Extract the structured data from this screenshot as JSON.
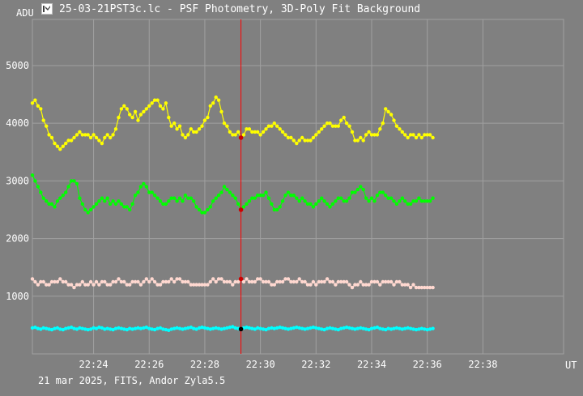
{
  "window": {
    "title": "25-03-21PST3c.lc - PSF Photometry, 3D-Poly Fit Background",
    "icon": "lightcurve-app-icon"
  },
  "footer": {
    "text": "21 mar 2025, FITS, Andor Zyla5.5"
  },
  "chart_data": {
    "type": "line",
    "title": "",
    "xlabel": "UT",
    "ylabel": "ADU",
    "xlim": [
      "22:21:48",
      "22:40:54"
    ],
    "ylim": [
      0,
      5800
    ],
    "x_ticks": [
      "22:24",
      "22:26",
      "22:28",
      "22:30",
      "22:32",
      "22:34",
      "22:36",
      "22:38"
    ],
    "y_ticks": [
      1000,
      2000,
      3000,
      4000,
      5000
    ],
    "grid": true,
    "cursor": {
      "x": "22:29:18"
    },
    "series": [
      {
        "color": "#ffff00",
        "start": "22:21:48",
        "step_seconds": 6,
        "values": [
          4350,
          4400,
          4300,
          4250,
          4050,
          3950,
          3800,
          3750,
          3650,
          3600,
          3550,
          3600,
          3650,
          3700,
          3700,
          3750,
          3800,
          3850,
          3800,
          3800,
          3800,
          3750,
          3800,
          3750,
          3700,
          3650,
          3750,
          3800,
          3750,
          3800,
          3900,
          4100,
          4250,
          4300,
          4250,
          4150,
          4100,
          4200,
          4050,
          4150,
          4200,
          4250,
          4300,
          4350,
          4400,
          4400,
          4300,
          4250,
          4350,
          4100,
          3950,
          4000,
          3900,
          3950,
          3800,
          3750,
          3800,
          3900,
          3850,
          3850,
          3900,
          3950,
          4050,
          4100,
          4300,
          4350,
          4450,
          4400,
          4200,
          4000,
          3950,
          3850,
          3800,
          3800,
          3850,
          3750,
          3800,
          3900,
          3900,
          3850,
          3850,
          3850,
          3800,
          3850,
          3900,
          3950,
          3950,
          4000,
          3950,
          3900,
          3850,
          3800,
          3750,
          3750,
          3700,
          3650,
          3700,
          3750,
          3700,
          3700,
          3700,
          3750,
          3800,
          3850,
          3900,
          3950,
          4000,
          4000,
          3950,
          3950,
          3950,
          4050,
          4100,
          4000,
          3950,
          3850,
          3700,
          3700,
          3750,
          3700,
          3800,
          3850,
          3800,
          3800,
          3800,
          3900,
          4000,
          4250,
          4200,
          4150,
          4050,
          3950,
          3900,
          3850,
          3800,
          3750,
          3800,
          3800,
          3750,
          3800,
          3750,
          3800,
          3800,
          3800,
          3750
        ]
      },
      {
        "color": "#00ff00",
        "start": "22:21:48",
        "step_seconds": 6,
        "values": [
          3100,
          3000,
          2900,
          2800,
          2700,
          2650,
          2600,
          2600,
          2550,
          2650,
          2700,
          2750,
          2800,
          2900,
          3000,
          3000,
          2950,
          2700,
          2600,
          2500,
          2450,
          2500,
          2550,
          2600,
          2650,
          2700,
          2650,
          2700,
          2600,
          2650,
          2600,
          2650,
          2600,
          2550,
          2550,
          2500,
          2600,
          2750,
          2800,
          2900,
          2950,
          2900,
          2800,
          2800,
          2750,
          2700,
          2650,
          2600,
          2600,
          2650,
          2700,
          2700,
          2650,
          2700,
          2650,
          2750,
          2700,
          2700,
          2650,
          2550,
          2500,
          2450,
          2450,
          2500,
          2550,
          2650,
          2700,
          2750,
          2800,
          2900,
          2850,
          2800,
          2750,
          2700,
          2600,
          2500,
          2550,
          2600,
          2650,
          2700,
          2700,
          2750,
          2750,
          2750,
          2800,
          2700,
          2600,
          2500,
          2500,
          2550,
          2650,
          2750,
          2800,
          2750,
          2750,
          2700,
          2650,
          2700,
          2650,
          2600,
          2600,
          2550,
          2600,
          2650,
          2700,
          2650,
          2600,
          2550,
          2600,
          2650,
          2700,
          2700,
          2650,
          2650,
          2700,
          2800,
          2800,
          2850,
          2900,
          2850,
          2700,
          2650,
          2700,
          2650,
          2750,
          2800,
          2800,
          2750,
          2700,
          2700,
          2650,
          2600,
          2650,
          2700,
          2650,
          2600,
          2600,
          2650,
          2650,
          2700,
          2650,
          2650,
          2650,
          2650,
          2700
        ]
      },
      {
        "color": "#ffd8d0",
        "start": "22:21:48",
        "step_seconds": 6,
        "values": [
          1300,
          1250,
          1200,
          1250,
          1250,
          1200,
          1200,
          1250,
          1250,
          1250,
          1300,
          1250,
          1250,
          1200,
          1200,
          1150,
          1200,
          1200,
          1250,
          1200,
          1200,
          1250,
          1200,
          1250,
          1200,
          1250,
          1250,
          1200,
          1200,
          1250,
          1250,
          1300,
          1250,
          1250,
          1200,
          1200,
          1250,
          1250,
          1250,
          1200,
          1250,
          1300,
          1250,
          1300,
          1250,
          1200,
          1200,
          1250,
          1250,
          1250,
          1300,
          1250,
          1300,
          1300,
          1250,
          1250,
          1250,
          1200,
          1200,
          1200,
          1200,
          1200,
          1200,
          1200,
          1250,
          1300,
          1250,
          1300,
          1300,
          1250,
          1250,
          1250,
          1200,
          1250,
          1250,
          1300,
          1250,
          1300,
          1250,
          1250,
          1250,
          1300,
          1300,
          1250,
          1250,
          1250,
          1200,
          1200,
          1250,
          1250,
          1250,
          1300,
          1300,
          1250,
          1250,
          1250,
          1300,
          1250,
          1250,
          1200,
          1200,
          1250,
          1200,
          1250,
          1250,
          1250,
          1300,
          1250,
          1250,
          1200,
          1250,
          1250,
          1250,
          1250,
          1200,
          1150,
          1200,
          1200,
          1250,
          1200,
          1200,
          1200,
          1250,
          1250,
          1250,
          1200,
          1250,
          1250,
          1250,
          1250,
          1200,
          1250,
          1250,
          1200,
          1200,
          1200,
          1150,
          1200,
          1150,
          1150,
          1150,
          1150,
          1150,
          1150,
          1150
        ]
      },
      {
        "color": "#00ffff",
        "start": "22:21:48",
        "step_seconds": 6,
        "values": [
          450,
          460,
          440,
          430,
          450,
          440,
          430,
          420,
          440,
          450,
          430,
          420,
          440,
          450,
          460,
          440,
          430,
          450,
          440,
          430,
          420,
          430,
          450,
          440,
          460,
          450,
          430,
          440,
          430,
          420,
          440,
          450,
          440,
          430,
          420,
          440,
          430,
          440,
          450,
          440,
          450,
          460,
          440,
          430,
          420,
          440,
          450,
          430,
          420,
          410,
          430,
          440,
          450,
          440,
          430,
          440,
          450,
          460,
          440,
          430,
          450,
          460,
          450,
          440,
          430,
          440,
          450,
          440,
          430,
          440,
          450,
          460,
          470,
          450,
          440,
          430,
          450,
          460,
          450,
          440,
          430,
          450,
          440,
          430,
          420,
          440,
          450,
          440,
          450,
          460,
          450,
          440,
          430,
          440,
          450,
          460,
          450,
          440,
          430,
          440,
          450,
          460,
          450,
          440,
          430,
          420,
          440,
          450,
          440,
          430,
          420,
          440,
          450,
          460,
          450,
          440,
          430,
          440,
          450,
          440,
          430,
          420,
          440,
          450,
          460,
          440,
          430,
          420,
          440,
          430,
          440,
          450,
          440,
          430,
          440,
          450,
          440,
          430,
          420,
          430,
          440,
          430,
          420,
          430,
          440
        ]
      }
    ]
  }
}
